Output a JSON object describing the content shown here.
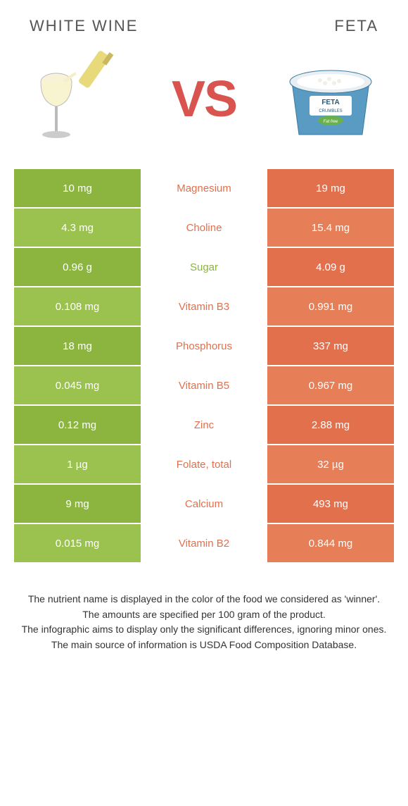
{
  "titles": {
    "left": "WHITE WINE",
    "right": "FETA",
    "vs": "VS"
  },
  "colors": {
    "green1": "#8bb53f",
    "green2": "#9bc24e",
    "orange1": "#e2704d",
    "orange2": "#e67e58",
    "vs_color": "#d9534f"
  },
  "rows": [
    {
      "left": "10 mg",
      "nutrient": "Magnesium",
      "right": "19 mg",
      "winner": "right"
    },
    {
      "left": "4.3 mg",
      "nutrient": "Choline",
      "right": "15.4 mg",
      "winner": "right"
    },
    {
      "left": "0.96 g",
      "nutrient": "Sugar",
      "right": "4.09 g",
      "winner": "left"
    },
    {
      "left": "0.108 mg",
      "nutrient": "Vitamin B3",
      "right": "0.991 mg",
      "winner": "right"
    },
    {
      "left": "18 mg",
      "nutrient": "Phosphorus",
      "right": "337 mg",
      "winner": "right"
    },
    {
      "left": "0.045 mg",
      "nutrient": "Vitamin B5",
      "right": "0.967 mg",
      "winner": "right"
    },
    {
      "left": "0.12 mg",
      "nutrient": "Zinc",
      "right": "2.88 mg",
      "winner": "right"
    },
    {
      "left": "1 µg",
      "nutrient": "Folate, total",
      "right": "32 µg",
      "winner": "right"
    },
    {
      "left": "9 mg",
      "nutrient": "Calcium",
      "right": "493 mg",
      "winner": "right"
    },
    {
      "left": "0.015 mg",
      "nutrient": "Vitamin B2",
      "right": "0.844 mg",
      "winner": "right"
    }
  ],
  "footnotes": [
    "The nutrient name is displayed in the color of the food we considered as 'winner'.",
    "The amounts are specified per 100 gram of the product.",
    "The infographic aims to display only the significant differences, ignoring minor ones.",
    "The main source of information is USDA Food Composition Database."
  ]
}
